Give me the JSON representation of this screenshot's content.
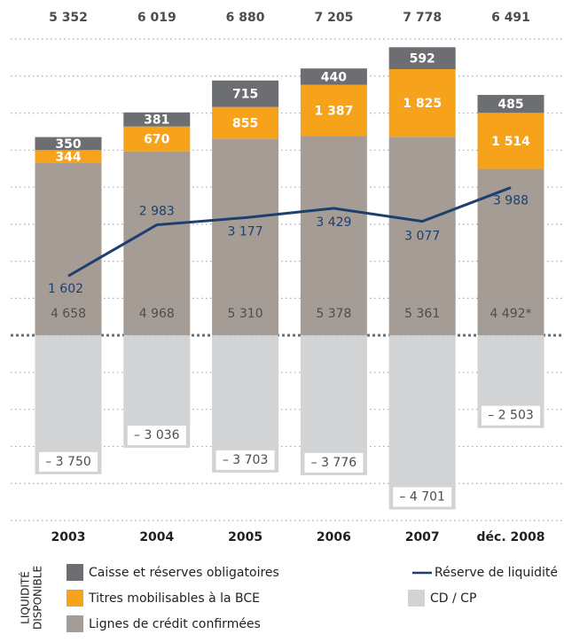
{
  "chart_data": {
    "type": "bar",
    "categories": [
      "2003",
      "2004",
      "2005",
      "2006",
      "2007",
      "déc. 2008"
    ],
    "ylim": [
      -5000,
      8000
    ],
    "yticks": [
      -5000,
      -4000,
      -3000,
      -2000,
      -1000,
      0,
      1000,
      2000,
      3000,
      4000,
      5000,
      6000,
      7000,
      8000
    ],
    "grid": true,
    "totals": {
      "values": [
        5352,
        6019,
        6880,
        7205,
        7778,
        6491
      ],
      "value_labels": [
        "5 352",
        "6 019",
        "6 880",
        "7 205",
        "7 778",
        "6 491"
      ]
    },
    "legend_title": [
      "LIQUIDITÉ",
      "DISPONIBLE"
    ],
    "series": [
      {
        "name": "Lignes de crédit confirmées",
        "color": "#a59d95",
        "kind": "bar",
        "values": [
          4658,
          4968,
          5310,
          5378,
          5361,
          4492
        ],
        "value_labels": [
          "4 658",
          "4 968",
          "5 310",
          "5 378",
          "5 361",
          "4 492*"
        ]
      },
      {
        "name": "Titres mobilisables à la BCE",
        "color": "#f7a21b",
        "kind": "bar",
        "values": [
          344,
          670,
          855,
          1387,
          1825,
          1514
        ],
        "value_labels": [
          "344",
          "670",
          "855",
          "1 387",
          "1 825",
          "1 514"
        ]
      },
      {
        "name": "Caisse et réserves obligatoires",
        "color": "#6d6e71",
        "kind": "bar",
        "values": [
          350,
          381,
          715,
          440,
          592,
          485
        ],
        "value_labels": [
          "350",
          "381",
          "715",
          "440",
          "592",
          "485"
        ]
      },
      {
        "name": "CD / CP",
        "color": "#d1d3d4",
        "kind": "bar",
        "values": [
          -3750,
          -3036,
          -3703,
          -3776,
          -4701,
          -2503
        ],
        "value_labels": [
          "– 3 750",
          "– 3 036",
          "– 3 703",
          "– 3 776",
          "– 4 701",
          "– 2 503"
        ]
      },
      {
        "name": "Réserve de liquidité",
        "color": "#1d3f6e",
        "kind": "line",
        "values": [
          1602,
          2983,
          3177,
          3429,
          3077,
          3988
        ],
        "value_labels": [
          "1 602",
          "2 983",
          "3 177",
          "3 429",
          "3 077",
          "3 988"
        ]
      }
    ]
  }
}
